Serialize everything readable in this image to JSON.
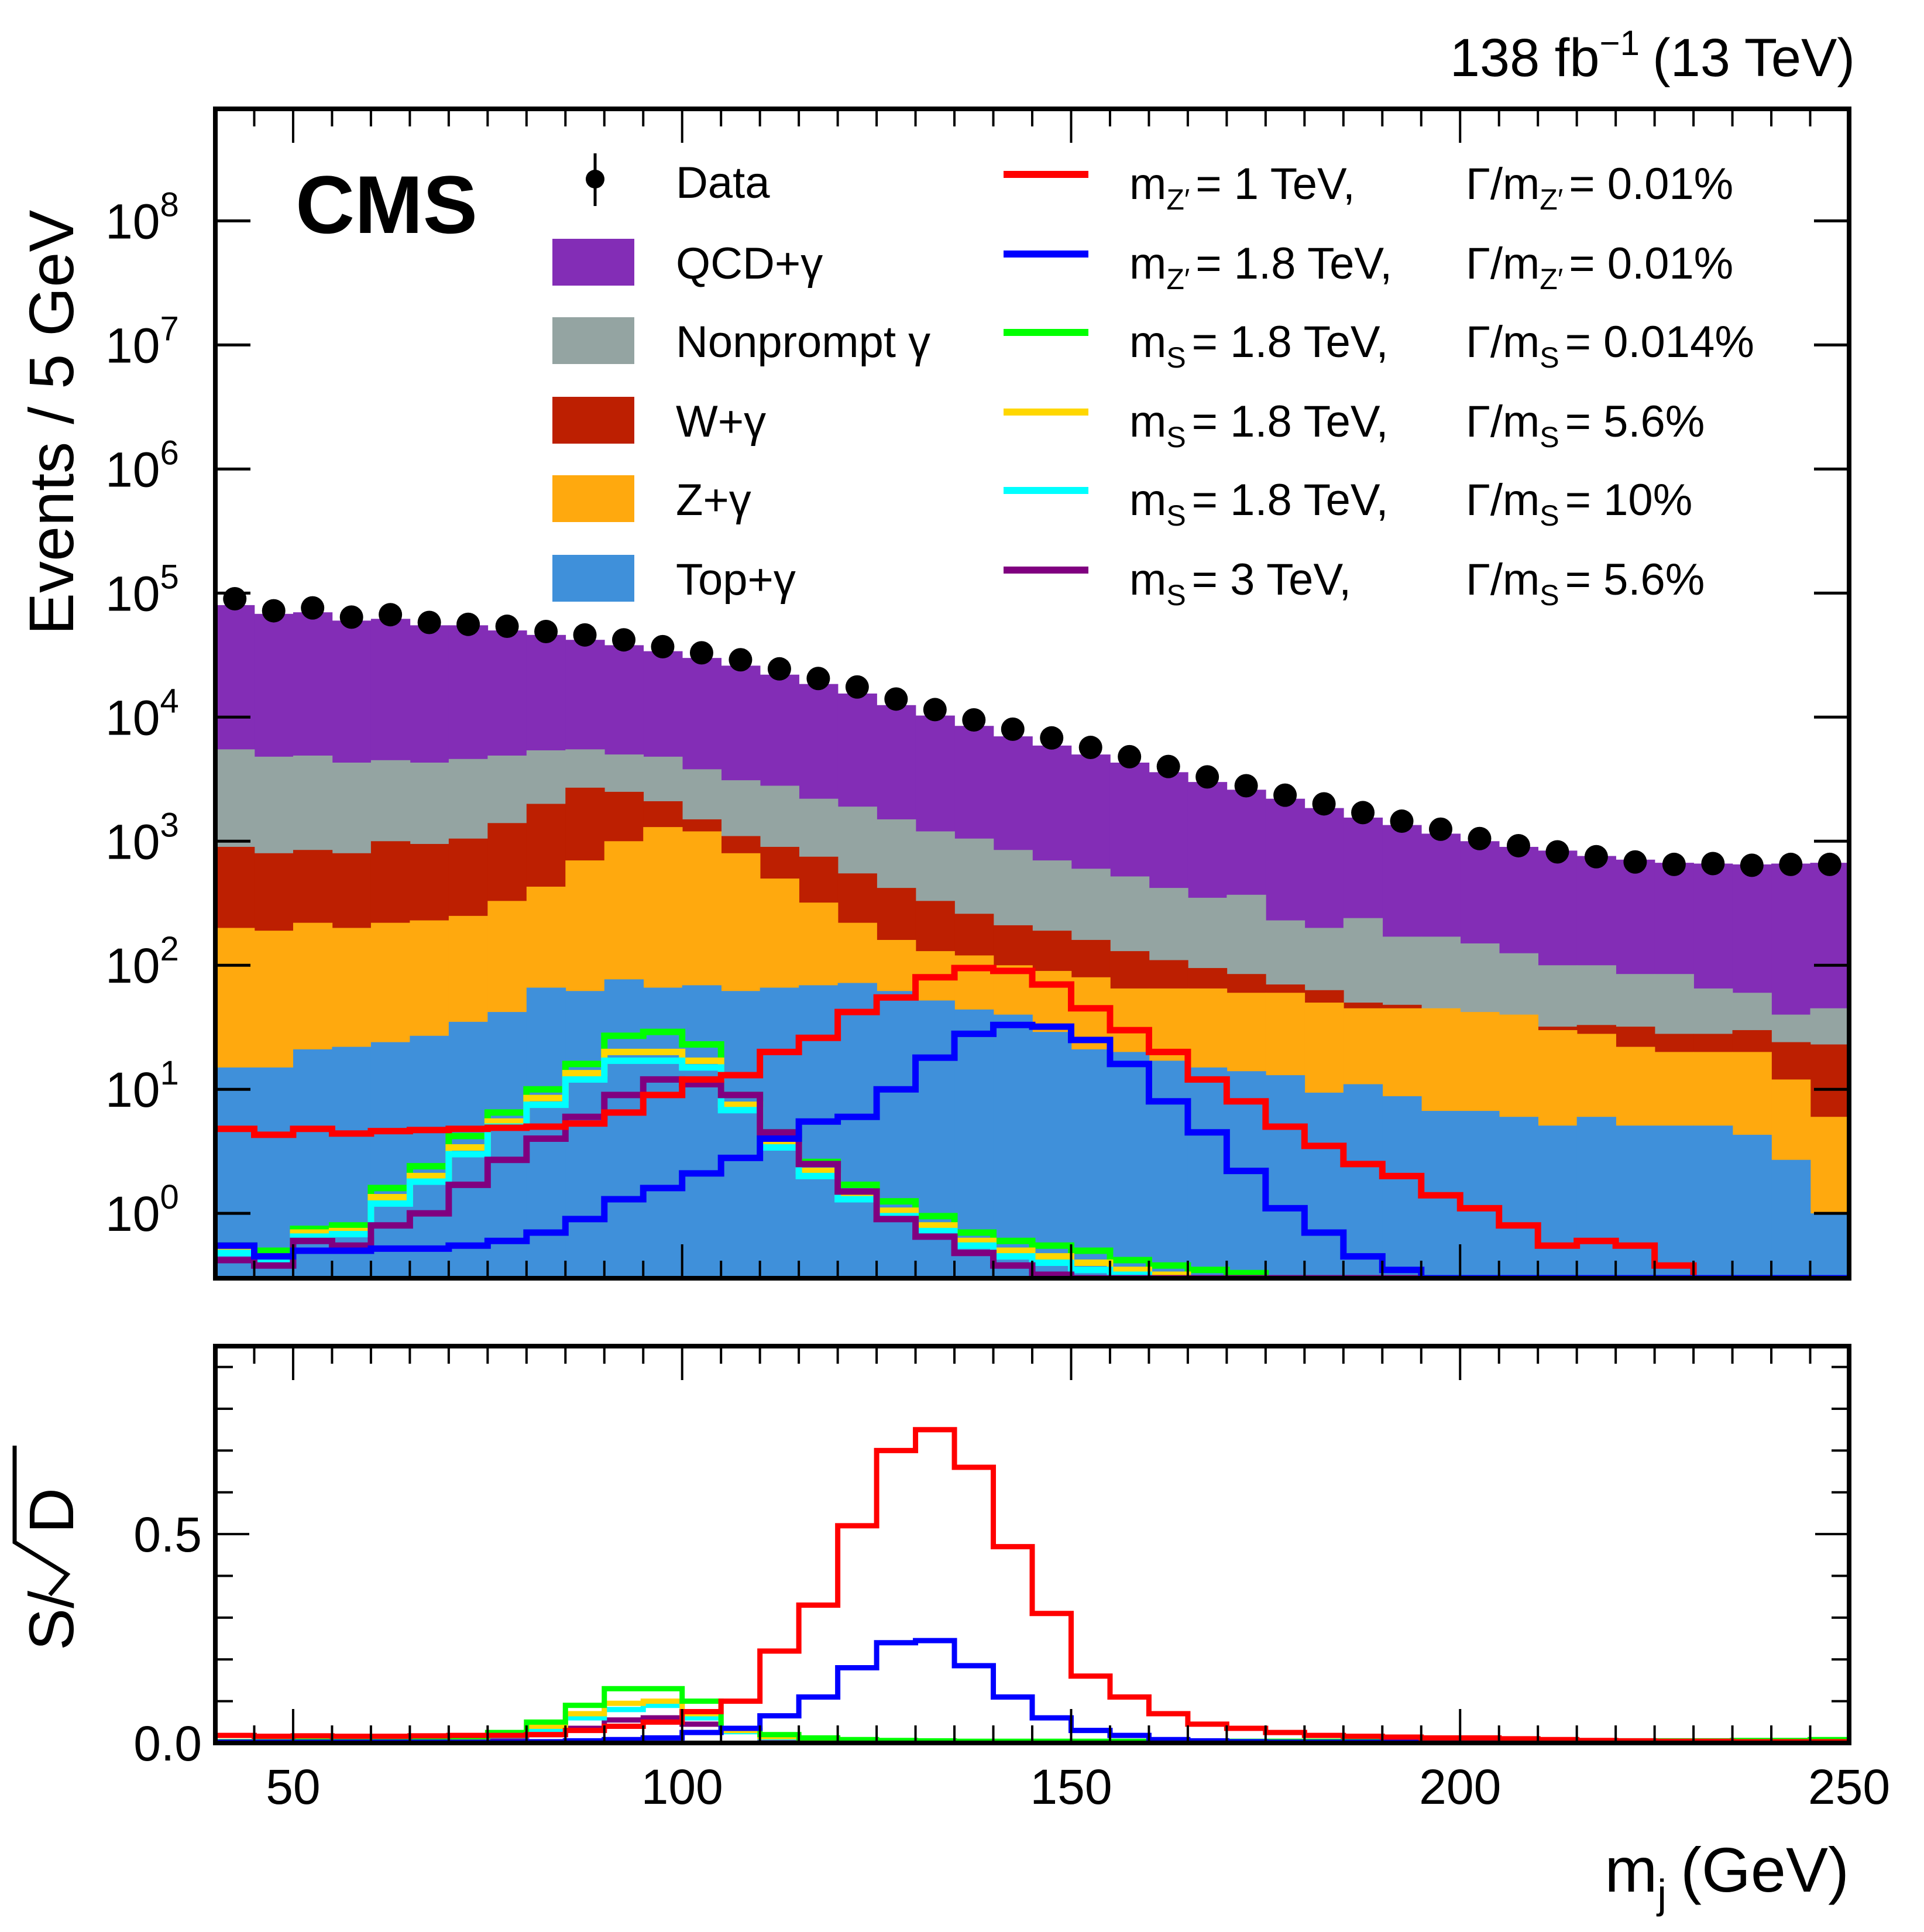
{
  "header": {
    "experiment": "CMS",
    "lumi_text": "138 fb",
    "lumi_exp": "−1",
    "energy_text": "(13 TeV)"
  },
  "legend": {
    "data": "Data",
    "backgrounds": [
      {
        "label": "QCD+γ",
        "color": "#832db6"
      },
      {
        "label": "Nonprompt γ",
        "color": "#94a4a2"
      },
      {
        "label": "W+γ",
        "color": "#bd1f01"
      },
      {
        "label": "Z+γ",
        "color": "#ffa90e"
      },
      {
        "label": "Top+γ",
        "color": "#3f90da"
      }
    ],
    "signals": [
      {
        "mass": "m",
        "mass_sub": "Z′",
        "mass_val": "= 1 TeV,",
        "width": "Γ/m",
        "width_sub": "Z′",
        "width_val": "= 0.01%",
        "color": "#ff0000"
      },
      {
        "mass": "m",
        "mass_sub": "Z′",
        "mass_val": "= 1.8 TeV,",
        "width": "Γ/m",
        "width_sub": "Z′",
        "width_val": "= 0.01%",
        "color": "#0000ff"
      },
      {
        "mass": "m",
        "mass_sub": "S",
        "mass_val": "= 1.8 TeV,",
        "width": "Γ/m",
        "width_sub": "S",
        "width_val": "= 0.014%",
        "color": "#00ff00"
      },
      {
        "mass": "m",
        "mass_sub": "S",
        "mass_val": "= 1.8 TeV,",
        "width": "Γ/m",
        "width_sub": "S",
        "width_val": "= 5.6%",
        "color": "#ffd700"
      },
      {
        "mass": "m",
        "mass_sub": "S",
        "mass_val": "= 1.8 TeV,",
        "width": "Γ/m",
        "width_sub": "S",
        "width_val": "= 10%",
        "color": "#00ffff"
      },
      {
        "mass": "m",
        "mass_sub": "S",
        "mass_val": "= 3 TeV,",
        "width": "Γ/m",
        "width_sub": "S",
        "width_val": "= 5.6%",
        "color": "#800080"
      }
    ]
  },
  "chart_data": [
    {
      "type": "bar",
      "subtype": "stacked-histogram-log",
      "title": "",
      "xlabel": "m_j (GeV)",
      "ylabel": "Events / 5 GeV",
      "x_range": [
        40,
        250
      ],
      "bin_width": 5,
      "ylim": [
        0.3,
        800000000
      ],
      "yscale": "log",
      "y_ticks": [
        "10^0",
        "10^1",
        "10^2",
        "10^3",
        "10^4",
        "10^5",
        "10^6",
        "10^7",
        "10^8"
      ],
      "bin_edges_start": [
        40,
        45,
        50,
        55,
        60,
        65,
        70,
        75,
        80,
        85,
        90,
        95,
        100,
        105,
        110,
        115,
        120,
        125,
        130,
        135,
        140,
        145,
        150,
        155,
        160,
        165,
        170,
        175,
        180,
        185,
        190,
        195,
        200,
        205,
        210,
        215,
        220,
        225,
        230,
        235,
        240,
        245
      ],
      "stack_cumulative": {
        "Top+γ": [
          15,
          15,
          21,
          22,
          24,
          27,
          35,
          42,
          66,
          62,
          77,
          66,
          69,
          62,
          66,
          69,
          72,
          62,
          52,
          44,
          40,
          29,
          21,
          20,
          17,
          15,
          14,
          13,
          9.4,
          11,
          8.8,
          6.7,
          6.7,
          6.0,
          5.1,
          6.0,
          5.1,
          5.1,
          5.1,
          4.3,
          2.7,
          1.0
        ],
        "Z+γ": [
          200,
          190,
          220,
          200,
          220,
          230,
          250,
          330,
          430,
          700,
          1000,
          1300,
          1200,
          800,
          500,
          320,
          220,
          160,
          130,
          120,
          100,
          90,
          80,
          65,
          65,
          65,
          60,
          60,
          50,
          45,
          45,
          45,
          42,
          40,
          30,
          28,
          22,
          20,
          20,
          20,
          12,
          6
        ],
        "W+γ": [
          900,
          800,
          850,
          800,
          1000,
          950,
          1050,
          1400,
          2000,
          2700,
          2500,
          2100,
          1500,
          1100,
          900,
          750,
          550,
          420,
          330,
          260,
          210,
          190,
          160,
          130,
          110,
          95,
          85,
          70,
          63,
          50,
          48,
          40,
          40,
          35,
          32,
          33,
          32,
          28,
          28,
          30,
          24,
          23
        ],
        "Nonprompt γ": [
          5500,
          4800,
          4900,
          4300,
          4500,
          4300,
          4600,
          4900,
          5400,
          5500,
          5000,
          4800,
          3800,
          3100,
          2800,
          2200,
          1900,
          1500,
          1200,
          1050,
          850,
          700,
          600,
          520,
          420,
          350,
          370,
          230,
          200,
          240,
          170,
          170,
          150,
          125,
          100,
          100,
          85,
          85,
          65,
          60,
          40,
          45
        ],
        "QCD+γ": [
          80000,
          68000,
          70000,
          60000,
          62000,
          55000,
          55000,
          50000,
          46000,
          42000,
          38000,
          34000,
          30000,
          26000,
          22000,
          18500,
          15500,
          12500,
          10300,
          8500,
          7000,
          5900,
          5000,
          4300,
          3600,
          3000,
          2600,
          2200,
          1850,
          1550,
          1350,
          1150,
          1000,
          900,
          840,
          760,
          710,
          670,
          660,
          650,
          660,
          670
        ]
      },
      "data_points": [
        90000,
        72000,
        76000,
        64000,
        67000,
        58000,
        56000,
        54000,
        49000,
        46000,
        42000,
        37000,
        33000,
        29000,
        24500,
        20500,
        17500,
        14000,
        11500,
        9500,
        8000,
        6800,
        5700,
        4800,
        4000,
        3300,
        2800,
        2350,
        2000,
        1700,
        1450,
        1250,
        1050,
        920,
        820,
        750,
        680,
        650,
        660,
        640,
        650,
        650
      ],
      "signals": {
        "m_Z′ = 1 TeV, Γ/m_Z′ = 0.01%": [
          4.8,
          4.3,
          4.8,
          4.4,
          4.6,
          4.7,
          4.8,
          4.9,
          5.0,
          5.3,
          6.5,
          9.0,
          12,
          13,
          20,
          26,
          42,
          55,
          80,
          95,
          90,
          70,
          45,
          30,
          20,
          12,
          8.0,
          5.0,
          3.5,
          2.5,
          2.0,
          1.4,
          1.1,
          0.8,
          0.55,
          0.6,
          0.55,
          0.38,
          0.3,
          0.3,
          0.25,
          0.2
        ],
        "m_Z′ = 1.8 TeV, Γ/m_Z′ = 0.01%": [
          0.55,
          0.45,
          0.5,
          0.5,
          0.52,
          0.52,
          0.55,
          0.6,
          0.7,
          0.9,
          1.3,
          1.6,
          2.1,
          2.8,
          4.0,
          5.5,
          6.0,
          10,
          18,
          28,
          33,
          32,
          25,
          16,
          8.0,
          4.5,
          2.2,
          1.1,
          0.7,
          0.45,
          0.35,
          0.3,
          0.28,
          0.25,
          0.22,
          0.2,
          0.2,
          0.2,
          0.2,
          0.2,
          0.2,
          0.2
        ],
        "m_S = 1.8 TeV, Γ/m_S = 0.014%": [
          0.55,
          0.5,
          0.75,
          0.8,
          1.6,
          2.4,
          4.2,
          6.5,
          10,
          16,
          27,
          29,
          23,
          9.0,
          4.5,
          2.6,
          1.7,
          1.25,
          0.95,
          0.7,
          0.6,
          0.55,
          0.5,
          0.42,
          0.38,
          0.35,
          0.33,
          0.3,
          0.28,
          0.25,
          0.25,
          0.25,
          0.25,
          0.25,
          0.25,
          0.25,
          0.25,
          0.25,
          0.25,
          0.25,
          0.25,
          0.25
        ],
        "m_S = 1.8 TeV, Γ/m_S = 5.6%": [
          0.5,
          0.45,
          0.7,
          0.72,
          1.35,
          2.0,
          3.4,
          5.5,
          8.5,
          13.5,
          20,
          20,
          17,
          7.5,
          3.8,
          2.2,
          1.45,
          1.05,
          0.8,
          0.6,
          0.5,
          0.45,
          0.4,
          0.35,
          0.32,
          0.3,
          0.28,
          0.26,
          0.25,
          0.25,
          0.25,
          0.25,
          0.25,
          0.25,
          0.25,
          0.25,
          0.25,
          0.25,
          0.25,
          0.25,
          0.25,
          0.25
        ],
        "m_S = 1.8 TeV, Γ/m_S = 10%": [
          0.48,
          0.42,
          0.65,
          0.68,
          1.2,
          1.8,
          3.0,
          5.0,
          7.5,
          12,
          17,
          17,
          15,
          6.8,
          3.4,
          2.0,
          1.3,
          0.95,
          0.72,
          0.55,
          0.45,
          0.4,
          0.35,
          0.32,
          0.3,
          0.28,
          0.26,
          0.25,
          0.25,
          0.25,
          0.25,
          0.25,
          0.25,
          0.25,
          0.25,
          0.25,
          0.25,
          0.25,
          0.25,
          0.25,
          0.25,
          0.25
        ],
        "m_S = 3 TeV, Γ/m_S = 5.6%": [
          0.42,
          0.38,
          0.6,
          0.55,
          0.8,
          1.0,
          1.7,
          2.7,
          4.0,
          6.0,
          9.0,
          12,
          11,
          9.0,
          4.5,
          2.5,
          1.5,
          0.9,
          0.65,
          0.48,
          0.38,
          0.32,
          0.28,
          0.25,
          0.25,
          0.25,
          0.25,
          0.25,
          0.25,
          0.25,
          0.25,
          0.25,
          0.25,
          0.25,
          0.25,
          0.25,
          0.25,
          0.25,
          0.25,
          0.25,
          0.25,
          0.25
        ]
      }
    },
    {
      "type": "line",
      "subtype": "step-histogram",
      "title": "",
      "xlabel": "m_j (GeV)",
      "ylabel": "S/√D",
      "x_range": [
        40,
        250
      ],
      "x_ticks": [
        50,
        100,
        150,
        200,
        250
      ],
      "ylim": [
        0.0,
        0.95
      ],
      "y_ticks": [
        0.0,
        0.5
      ],
      "bin_edges_start": [
        40,
        45,
        50,
        55,
        60,
        65,
        70,
        75,
        80,
        85,
        90,
        95,
        100,
        105,
        110,
        115,
        120,
        125,
        130,
        135,
        140,
        145,
        150,
        155,
        160,
        165,
        170,
        175,
        180,
        185,
        190,
        195,
        200,
        205,
        210,
        215,
        220,
        225,
        230,
        235,
        240,
        245
      ],
      "series": [
        {
          "name": "m_Z′ = 1 TeV, Γ/m_Z′ = 0.01%",
          "values": [
            0.018,
            0.016,
            0.017,
            0.016,
            0.016,
            0.017,
            0.018,
            0.018,
            0.02,
            0.03,
            0.04,
            0.05,
            0.075,
            0.1,
            0.22,
            0.33,
            0.52,
            0.7,
            0.75,
            0.66,
            0.47,
            0.31,
            0.16,
            0.11,
            0.07,
            0.045,
            0.035,
            0.025,
            0.018,
            0.016,
            0.014,
            0.012,
            0.012,
            0.01,
            0.008,
            0.006,
            0.005,
            0.004,
            0.004,
            0.003,
            0.003,
            0.003
          ]
        },
        {
          "name": "m_Z′ = 1.8 TeV, Γ/m_Z′ = 0.01%",
          "values": [
            0.002,
            0.002,
            0.002,
            0.002,
            0.002,
            0.002,
            0.002,
            0.002,
            0.003,
            0.005,
            0.008,
            0.012,
            0.025,
            0.035,
            0.065,
            0.11,
            0.18,
            0.24,
            0.245,
            0.185,
            0.11,
            0.06,
            0.03,
            0.018,
            0.008,
            0.005,
            0.003,
            0.002,
            0.002,
            0.002,
            0.002,
            0.002,
            0.002,
            0.002,
            0.002,
            0.002,
            0.002,
            0.002,
            0.002,
            0.002,
            0.002,
            0.002
          ]
        },
        {
          "name": "m_S = 1.8 TeV, Γ/m_S = 0.014%",
          "values": [
            0.003,
            0.003,
            0.004,
            0.005,
            0.007,
            0.01,
            0.015,
            0.025,
            0.05,
            0.09,
            0.13,
            0.13,
            0.1,
            0.035,
            0.02,
            0.012,
            0.008,
            0.006,
            0.005,
            0.004,
            0.004,
            0.004,
            0.004,
            0.004,
            0.004,
            0.004,
            0.004,
            0.004,
            0.004,
            0.004,
            0.004,
            0.004,
            0.004,
            0.004,
            0.004,
            0.004,
            0.005,
            0.005,
            0.005,
            0.006,
            0.006,
            0.008
          ]
        },
        {
          "name": "m_S = 1.8 TeV, Γ/m_S = 5.6%",
          "values": [
            0.003,
            0.003,
            0.004,
            0.004,
            0.006,
            0.008,
            0.012,
            0.02,
            0.04,
            0.07,
            0.095,
            0.1,
            0.07,
            0.03,
            0.015,
            0.01,
            0.006,
            0.005,
            0.004,
            0.003,
            0.003,
            0.003,
            0.003,
            0.003,
            0.003,
            0.003,
            0.003,
            0.003,
            0.003,
            0.003,
            0.003,
            0.003,
            0.003,
            0.003,
            0.003,
            0.003,
            0.003,
            0.003,
            0.003,
            0.003,
            0.003,
            0.003
          ]
        },
        {
          "name": "m_S = 1.8 TeV, Γ/m_S = 10%",
          "values": [
            0.003,
            0.003,
            0.003,
            0.004,
            0.005,
            0.007,
            0.01,
            0.017,
            0.033,
            0.06,
            0.08,
            0.09,
            0.06,
            0.027,
            0.013,
            0.008,
            0.005,
            0.004,
            0.003,
            0.003,
            0.003,
            0.003,
            0.003,
            0.003,
            0.003,
            0.003,
            0.003,
            0.003,
            0.003,
            0.003,
            0.003,
            0.003,
            0.003,
            0.003,
            0.003,
            0.003,
            0.003,
            0.003,
            0.003,
            0.003,
            0.003,
            0.003
          ]
        },
        {
          "name": "m_S = 3 TeV, Γ/m_S = 5.6%",
          "values": [
            0.002,
            0.002,
            0.002,
            0.003,
            0.004,
            0.005,
            0.007,
            0.01,
            0.02,
            0.035,
            0.055,
            0.06,
            0.045,
            0.03,
            0.012,
            0.006,
            0.004,
            0.003,
            0.002,
            0.002,
            0.002,
            0.002,
            0.002,
            0.002,
            0.002,
            0.002,
            0.002,
            0.002,
            0.002,
            0.002,
            0.002,
            0.002,
            0.002,
            0.002,
            0.002,
            0.002,
            0.002,
            0.002,
            0.002,
            0.002,
            0.002,
            0.002
          ]
        }
      ]
    }
  ],
  "axes": {
    "main_ylabel": "Events / 5 GeV",
    "ratio_ylabel_prefix": "S/",
    "ratio_ylabel_radicand": "D",
    "xlabel_main": "m",
    "xlabel_sub": "j",
    "xlabel_unit": "(GeV)",
    "ratio_yticks": [
      "0.0",
      "0.5"
    ],
    "x_ticks": [
      "50",
      "100",
      "150",
      "200",
      "250"
    ],
    "main_yticks_base": "10",
    "main_yticks_exp": [
      "0",
      "1",
      "2",
      "3",
      "4",
      "5",
      "6",
      "7",
      "8"
    ]
  }
}
